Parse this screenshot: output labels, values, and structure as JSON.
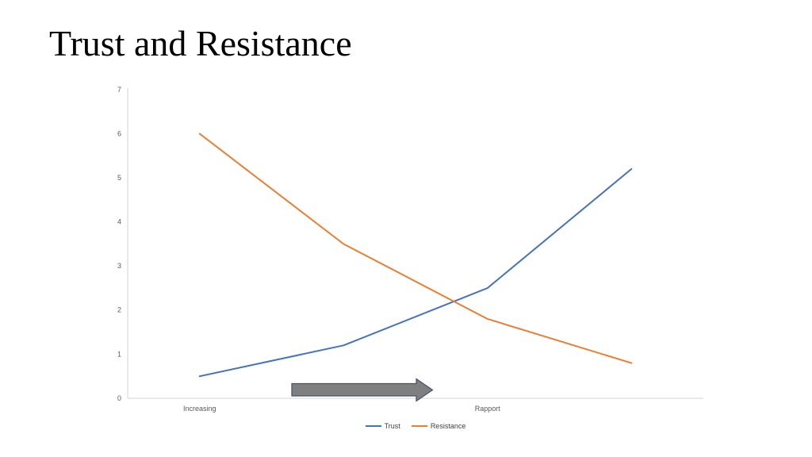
{
  "slide": {
    "title": "Trust and Resistance",
    "background": "#ffffff"
  },
  "chart_data": {
    "type": "line",
    "title": "",
    "categories": [
      "Increasing",
      "",
      "Rapport",
      ""
    ],
    "series": [
      {
        "name": "Trust",
        "color": "#4472C4",
        "values": [
          0.5,
          1.2,
          2.5,
          5.2
        ]
      },
      {
        "name": "Resistance",
        "color": "#ED7D31",
        "values": [
          6.0,
          3.5,
          1.8,
          0.8
        ]
      }
    ],
    "xlabel": "",
    "ylabel": "",
    "ylim": [
      0,
      7
    ],
    "ytick_interval": 1,
    "ytick_labels": [
      "0",
      "1",
      "2",
      "3",
      "4",
      "5",
      "6",
      "7"
    ],
    "grid": false,
    "legend_position": "bottom",
    "axis_color": "#d6d6d6",
    "tick_label_color": "#595959",
    "legend_text_color": "#404040"
  },
  "annotations": {
    "arrow": {
      "shape": "right-arrow",
      "meaning": "increasing rapport direction",
      "fill": "#7f7f7f",
      "outline": "#44546a"
    }
  }
}
